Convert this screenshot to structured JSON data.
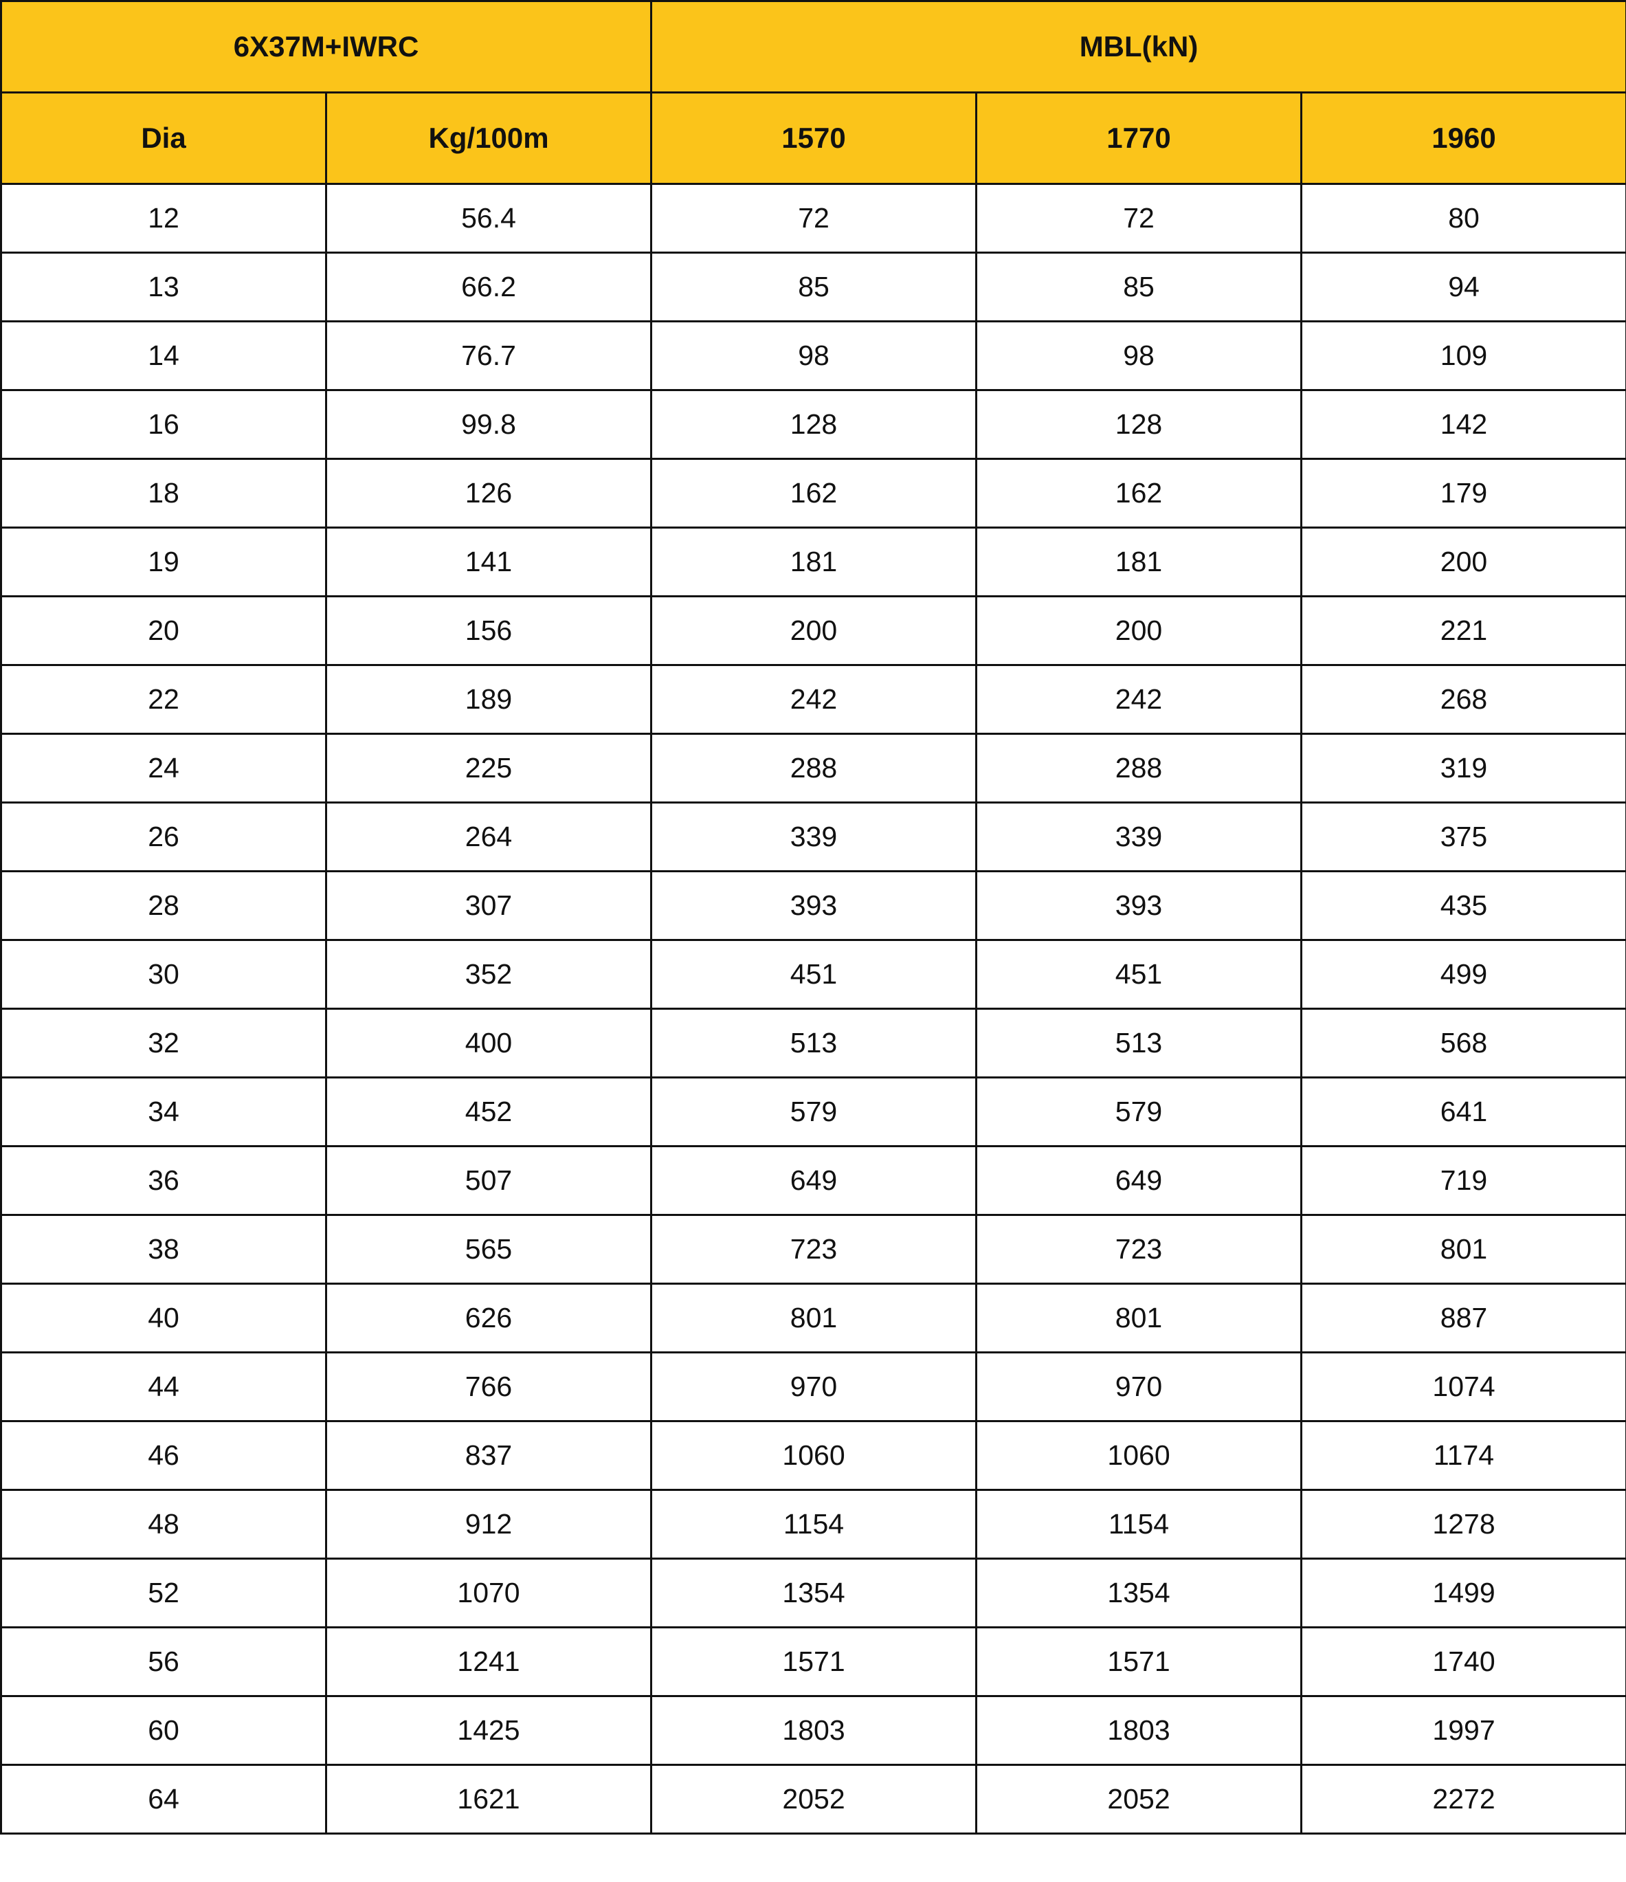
{
  "colors": {
    "header_bg": "#FBC41A",
    "border": "#111111"
  },
  "table": {
    "group_headers": [
      "6X37M+IWRC",
      "MBL(kN)"
    ],
    "columns": [
      "Dia",
      "Kg/100m",
      "1570",
      "1770",
      "1960"
    ],
    "rows": [
      [
        "12",
        "56.4",
        "72",
        "72",
        "80"
      ],
      [
        "13",
        "66.2",
        "85",
        "85",
        "94"
      ],
      [
        "14",
        "76.7",
        "98",
        "98",
        "109"
      ],
      [
        "16",
        "99.8",
        "128",
        "128",
        "142"
      ],
      [
        "18",
        "126",
        "162",
        "162",
        "179"
      ],
      [
        "19",
        "141",
        "181",
        "181",
        "200"
      ],
      [
        "20",
        "156",
        "200",
        "200",
        "221"
      ],
      [
        "22",
        "189",
        "242",
        "242",
        "268"
      ],
      [
        "24",
        "225",
        "288",
        "288",
        "319"
      ],
      [
        "26",
        "264",
        "339",
        "339",
        "375"
      ],
      [
        "28",
        "307",
        "393",
        "393",
        "435"
      ],
      [
        "30",
        "352",
        "451",
        "451",
        "499"
      ],
      [
        "32",
        "400",
        "513",
        "513",
        "568"
      ],
      [
        "34",
        "452",
        "579",
        "579",
        "641"
      ],
      [
        "36",
        "507",
        "649",
        "649",
        "719"
      ],
      [
        "38",
        "565",
        "723",
        "723",
        "801"
      ],
      [
        "40",
        "626",
        "801",
        "801",
        "887"
      ],
      [
        "44",
        "766",
        "970",
        "970",
        "1074"
      ],
      [
        "46",
        "837",
        "1060",
        "1060",
        "1174"
      ],
      [
        "48",
        "912",
        "1154",
        "1154",
        "1278"
      ],
      [
        "52",
        "1070",
        "1354",
        "1354",
        "1499"
      ],
      [
        "56",
        "1241",
        "1571",
        "1571",
        "1740"
      ],
      [
        "60",
        "1425",
        "1803",
        "1803",
        "1997"
      ],
      [
        "64",
        "1621",
        "2052",
        "2052",
        "2272"
      ]
    ]
  }
}
